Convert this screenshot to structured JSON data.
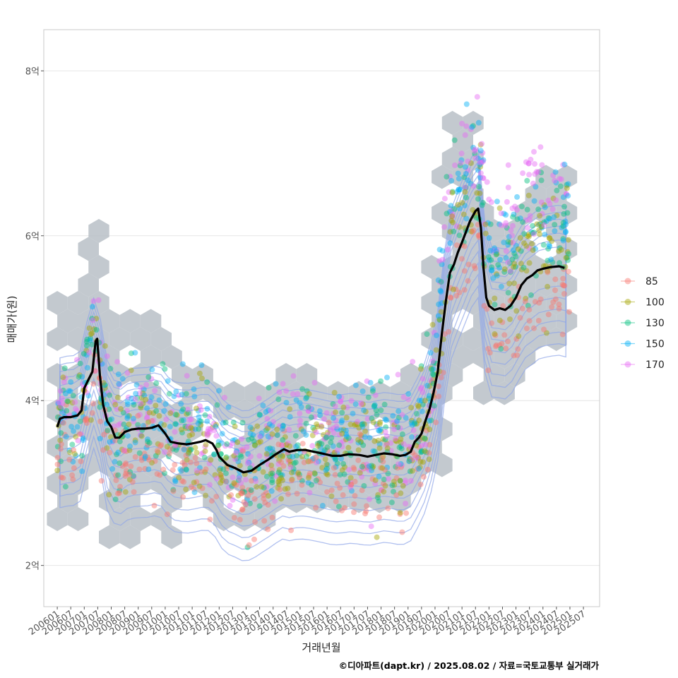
{
  "chart_data": {
    "type": "scatter",
    "xlabel": "거래년월",
    "ylabel": "매매가(원)",
    "caption": "©디아파트(dapt.kr) / 2025.08.02 / 자료=국토교통부 실거래가",
    "x_ticks": [
      "200601",
      "200607",
      "200701",
      "200707",
      "200801",
      "200807",
      "200901",
      "200907",
      "201001",
      "201007",
      "201101",
      "201107",
      "201201",
      "201207",
      "201301",
      "201307",
      "201401",
      "201407",
      "201501",
      "201507",
      "201601",
      "201607",
      "201701",
      "201707",
      "201801",
      "201807",
      "201901",
      "201907",
      "202001",
      "202007",
      "202101",
      "202107",
      "202201",
      "202207",
      "202301",
      "202307",
      "202401",
      "202407",
      "202501",
      "202507"
    ],
    "y_ticks": [
      {
        "value": 2,
        "label": "2억"
      },
      {
        "value": 4,
        "label": "4억"
      },
      {
        "value": 6,
        "label": "6억"
      },
      {
        "value": 8,
        "label": "8억"
      }
    ],
    "ylim": [
      1.5,
      8.5
    ],
    "xlim": [
      2005.5,
      2026.1
    ],
    "grid": true,
    "legend": {
      "position": "right",
      "entries": [
        {
          "label": "85",
          "color": "#F8766D"
        },
        {
          "label": "100",
          "color": "#A3A500"
        },
        {
          "label": "130",
          "color": "#00BF7D"
        },
        {
          "label": "150",
          "color": "#00B0F6"
        },
        {
          "label": "170",
          "color": "#E76BF3"
        }
      ]
    },
    "hexbin_color": "#B8BFC7",
    "contour_color": "#8FA5E8",
    "trend_line": {
      "color": "#000000",
      "points": [
        [
          2006.0,
          3.68
        ],
        [
          2006.1,
          3.78
        ],
        [
          2006.25,
          3.8
        ],
        [
          2006.5,
          3.8
        ],
        [
          2006.75,
          3.82
        ],
        [
          2006.9,
          3.88
        ],
        [
          2007.0,
          4.15
        ],
        [
          2007.15,
          4.25
        ],
        [
          2007.3,
          4.35
        ],
        [
          2007.42,
          4.72
        ],
        [
          2007.48,
          4.75
        ],
        [
          2007.58,
          4.3
        ],
        [
          2007.7,
          3.95
        ],
        [
          2007.85,
          3.75
        ],
        [
          2008.0,
          3.68
        ],
        [
          2008.15,
          3.55
        ],
        [
          2008.3,
          3.55
        ],
        [
          2008.5,
          3.62
        ],
        [
          2008.75,
          3.65
        ],
        [
          2009.0,
          3.66
        ],
        [
          2009.25,
          3.66
        ],
        [
          2009.5,
          3.67
        ],
        [
          2009.75,
          3.7
        ],
        [
          2010.0,
          3.6
        ],
        [
          2010.2,
          3.5
        ],
        [
          2010.5,
          3.48
        ],
        [
          2010.8,
          3.47
        ],
        [
          2011.0,
          3.48
        ],
        [
          2011.3,
          3.5
        ],
        [
          2011.5,
          3.52
        ],
        [
          2011.75,
          3.48
        ],
        [
          2011.9,
          3.4
        ],
        [
          2012.0,
          3.32
        ],
        [
          2012.3,
          3.22
        ],
        [
          2012.6,
          3.18
        ],
        [
          2012.9,
          3.13
        ],
        [
          2013.2,
          3.15
        ],
        [
          2013.5,
          3.22
        ],
        [
          2013.8,
          3.28
        ],
        [
          2014.1,
          3.35
        ],
        [
          2014.4,
          3.41
        ],
        [
          2014.6,
          3.38
        ],
        [
          2014.9,
          3.4
        ],
        [
          2015.2,
          3.4
        ],
        [
          2015.5,
          3.38
        ],
        [
          2015.8,
          3.36
        ],
        [
          2016.2,
          3.33
        ],
        [
          2016.5,
          3.33
        ],
        [
          2016.8,
          3.35
        ],
        [
          2017.2,
          3.34
        ],
        [
          2017.5,
          3.32
        ],
        [
          2017.8,
          3.34
        ],
        [
          2018.1,
          3.36
        ],
        [
          2018.4,
          3.35
        ],
        [
          2018.7,
          3.33
        ],
        [
          2018.9,
          3.34
        ],
        [
          2019.1,
          3.38
        ],
        [
          2019.25,
          3.5
        ],
        [
          2019.4,
          3.55
        ],
        [
          2019.5,
          3.6
        ],
        [
          2019.65,
          3.76
        ],
        [
          2019.8,
          3.9
        ],
        [
          2019.95,
          4.1
        ],
        [
          2020.1,
          4.35
        ],
        [
          2020.25,
          4.8
        ],
        [
          2020.4,
          5.2
        ],
        [
          2020.55,
          5.55
        ],
        [
          2020.7,
          5.65
        ],
        [
          2020.85,
          5.8
        ],
        [
          2021.0,
          5.92
        ],
        [
          2021.15,
          6.05
        ],
        [
          2021.3,
          6.18
        ],
        [
          2021.5,
          6.3
        ],
        [
          2021.6,
          6.33
        ],
        [
          2021.7,
          6.1
        ],
        [
          2021.8,
          5.6
        ],
        [
          2021.9,
          5.25
        ],
        [
          2022.0,
          5.15
        ],
        [
          2022.2,
          5.1
        ],
        [
          2022.4,
          5.12
        ],
        [
          2022.6,
          5.1
        ],
        [
          2022.8,
          5.15
        ],
        [
          2023.0,
          5.25
        ],
        [
          2023.2,
          5.4
        ],
        [
          2023.4,
          5.48
        ],
        [
          2023.6,
          5.52
        ],
        [
          2023.8,
          5.58
        ],
        [
          2024.0,
          5.6
        ],
        [
          2024.3,
          5.62
        ],
        [
          2024.6,
          5.63
        ],
        [
          2024.8,
          5.61
        ]
      ]
    }
  }
}
